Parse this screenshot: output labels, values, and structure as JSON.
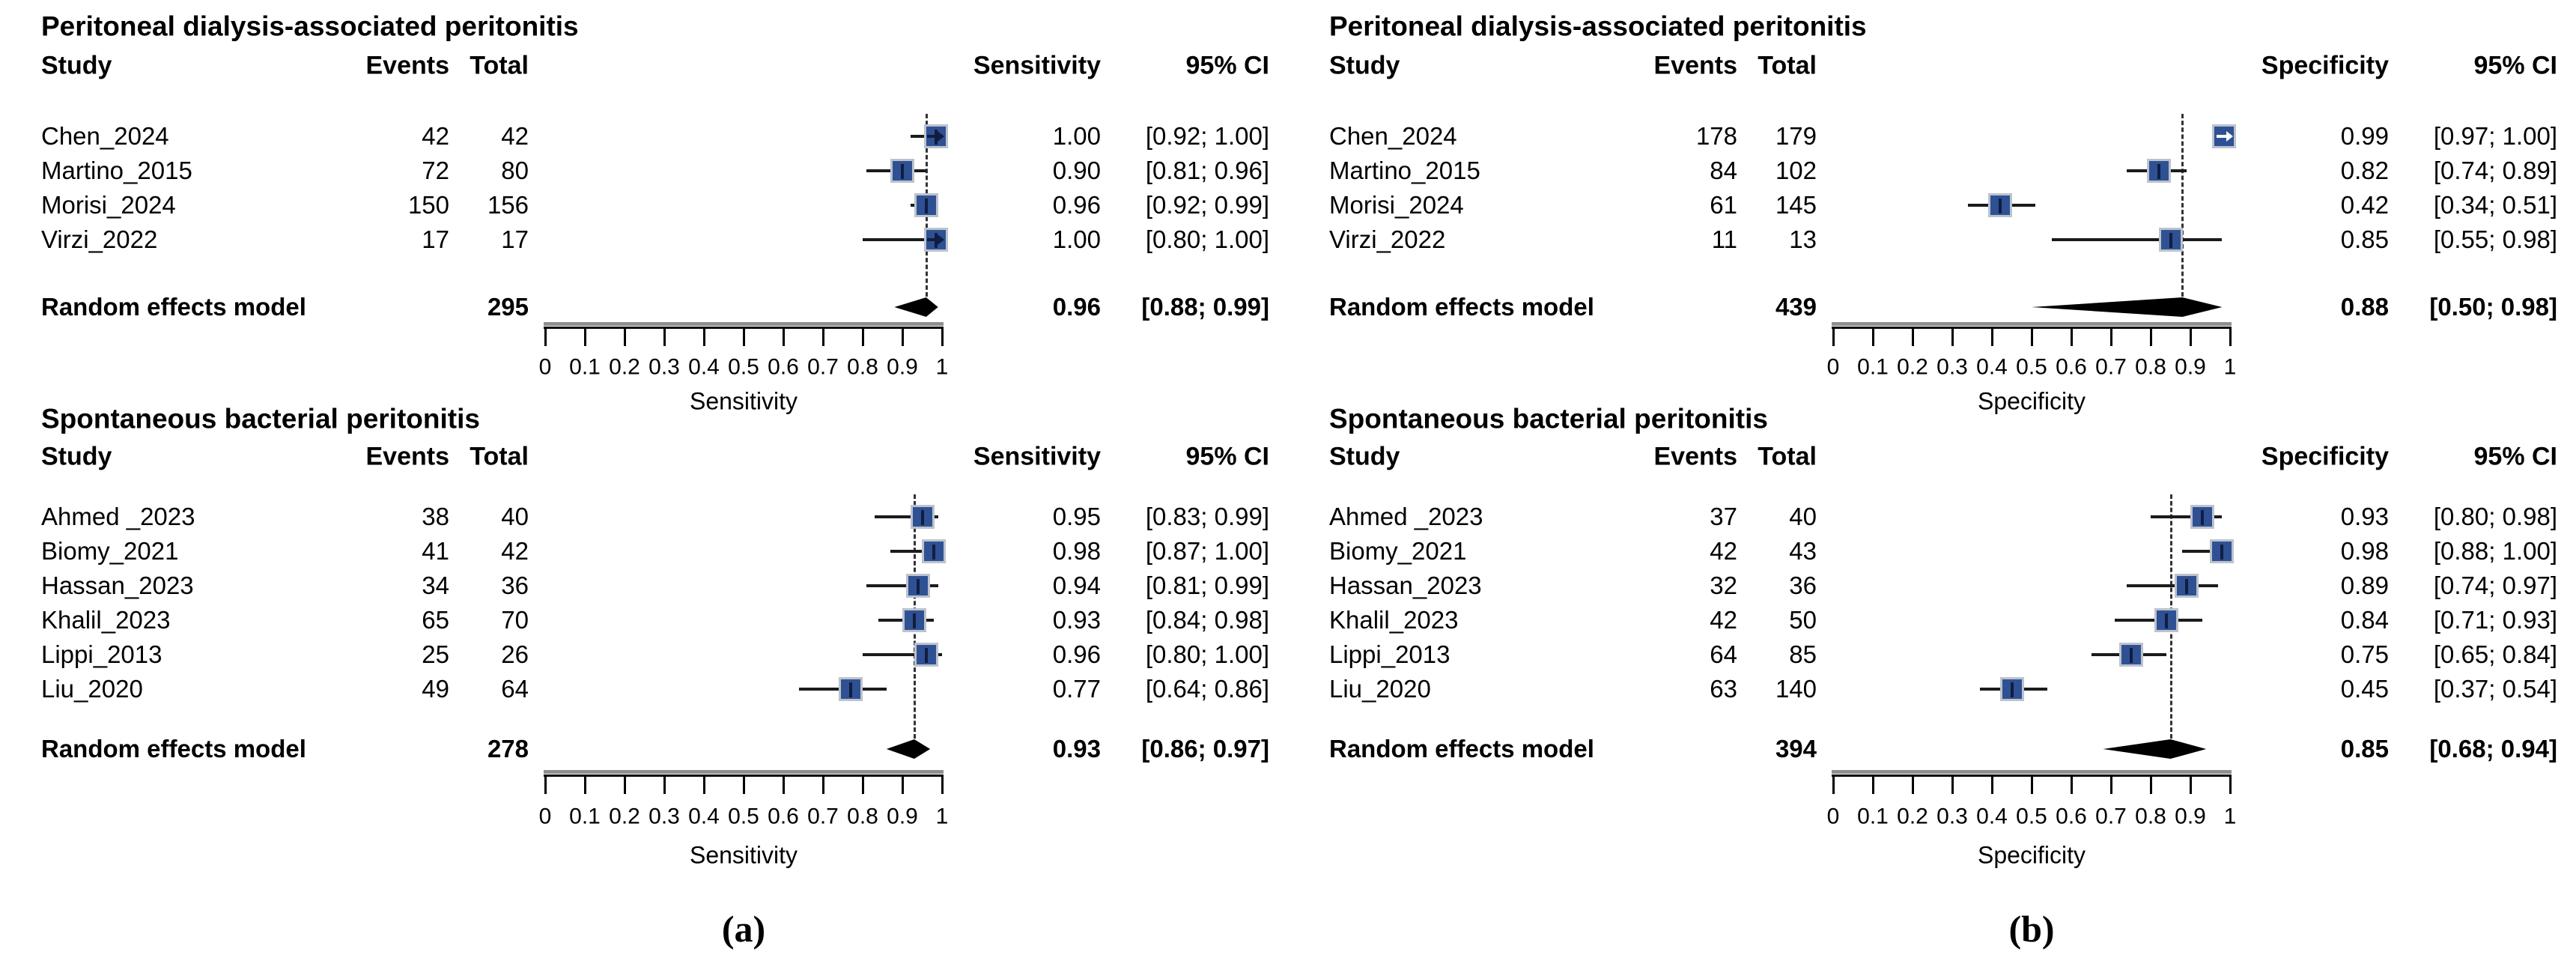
{
  "figure": {
    "captions": {
      "a": "(a)",
      "b": "(b)"
    }
  },
  "colors": {
    "background": "#ffffff",
    "text": "#000000",
    "square_fill": "#2f5193",
    "square_border": "#bcc3cd",
    "ci_line": "#1b1b1b",
    "marker_tick": "#101d42",
    "white_arrow": "#ffffff",
    "diamond": "#000000",
    "dashed_line": "#333333",
    "axis_line": "#000000",
    "axis_shadow": "#8f8f8f"
  },
  "chart_data": [
    {
      "type": "forest",
      "figure_panel": "a",
      "slot": "top",
      "title": "Peritoneal dialysis-associated peritonitis",
      "measure_label": "Sensitivity",
      "columns": {
        "study": "Study",
        "events": "Events",
        "total": "Total",
        "ci": "95% CI"
      },
      "axis": {
        "label": "Sensitivity",
        "min": 0,
        "max": 1,
        "ticks": [
          "0",
          "0.1",
          "0.2",
          "0.3",
          "0.4",
          "0.5",
          "0.6",
          "0.7",
          "0.8",
          "0.9",
          "1"
        ]
      },
      "studies": [
        {
          "study": "Chen_2024",
          "events": "42",
          "total": "42",
          "estimate": 1.0,
          "ci_lower": 0.92,
          "ci_upper": 1.0,
          "estimate_text": "1.00",
          "ci_text": "[0.92; 1.00]",
          "arrow": "dark"
        },
        {
          "study": "Martino_2015",
          "events": "72",
          "total": "80",
          "estimate": 0.9,
          "ci_lower": 0.81,
          "ci_upper": 0.96,
          "estimate_text": "0.90",
          "ci_text": "[0.81; 0.96]"
        },
        {
          "study": "Morisi_2024",
          "events": "150",
          "total": "156",
          "estimate": 0.96,
          "ci_lower": 0.92,
          "ci_upper": 0.99,
          "estimate_text": "0.96",
          "ci_text": "[0.92; 0.99]"
        },
        {
          "study": "Virzi_2022",
          "events": "17",
          "total": "17",
          "estimate": 1.0,
          "ci_lower": 0.8,
          "ci_upper": 1.0,
          "estimate_text": "1.00",
          "ci_text": "[0.80; 1.00]",
          "arrow": "dark"
        }
      ],
      "pooled": {
        "label": "Random effects model",
        "total": "295",
        "estimate": 0.96,
        "ci_lower": 0.88,
        "ci_upper": 0.99,
        "estimate_text": "0.96",
        "ci_text": "[0.88; 0.99]"
      }
    },
    {
      "type": "forest",
      "figure_panel": "a",
      "slot": "bottom",
      "title": "Spontaneous bacterial peritonitis",
      "measure_label": "Sensitivity",
      "columns": {
        "study": "Study",
        "events": "Events",
        "total": "Total",
        "ci": "95% CI"
      },
      "axis": {
        "label": "Sensitivity",
        "min": 0,
        "max": 1,
        "ticks": [
          "0",
          "0.1",
          "0.2",
          "0.3",
          "0.4",
          "0.5",
          "0.6",
          "0.7",
          "0.8",
          "0.9",
          "1"
        ]
      },
      "studies": [
        {
          "study": "Ahmed _2023",
          "events": "38",
          "total": "40",
          "estimate": 0.95,
          "ci_lower": 0.83,
          "ci_upper": 0.99,
          "estimate_text": "0.95",
          "ci_text": "[0.83; 0.99]"
        },
        {
          "study": "Biomy_2021",
          "events": "41",
          "total": "42",
          "estimate": 0.98,
          "ci_lower": 0.87,
          "ci_upper": 1.0,
          "estimate_text": "0.98",
          "ci_text": "[0.87; 1.00]"
        },
        {
          "study": "Hassan_2023",
          "events": "34",
          "total": "36",
          "estimate": 0.94,
          "ci_lower": 0.81,
          "ci_upper": 0.99,
          "estimate_text": "0.94",
          "ci_text": "[0.81; 0.99]"
        },
        {
          "study": "Khalil_2023",
          "events": "65",
          "total": "70",
          "estimate": 0.93,
          "ci_lower": 0.84,
          "ci_upper": 0.98,
          "estimate_text": "0.93",
          "ci_text": "[0.84; 0.98]"
        },
        {
          "study": "Lippi_2013",
          "events": "25",
          "total": "26",
          "estimate": 0.96,
          "ci_lower": 0.8,
          "ci_upper": 1.0,
          "estimate_text": "0.96",
          "ci_text": "[0.80; 1.00]"
        },
        {
          "study": "Liu_2020",
          "events": "49",
          "total": "64",
          "estimate": 0.77,
          "ci_lower": 0.64,
          "ci_upper": 0.86,
          "estimate_text": "0.77",
          "ci_text": "[0.64; 0.86]"
        }
      ],
      "pooled": {
        "label": "Random effects model",
        "total": "278",
        "estimate": 0.93,
        "ci_lower": 0.86,
        "ci_upper": 0.97,
        "estimate_text": "0.93",
        "ci_text": "[0.86; 0.97]"
      }
    },
    {
      "type": "forest",
      "figure_panel": "b",
      "slot": "top",
      "title": "Peritoneal dialysis-associated peritonitis",
      "measure_label": "Specificity",
      "columns": {
        "study": "Study",
        "events": "Events",
        "total": "Total",
        "ci": "95% CI"
      },
      "axis": {
        "label": "Specificity",
        "min": 0,
        "max": 1,
        "ticks": [
          "0",
          "0.1",
          "0.2",
          "0.3",
          "0.4",
          "0.5",
          "0.6",
          "0.7",
          "0.8",
          "0.9",
          "1"
        ]
      },
      "studies": [
        {
          "study": "Chen_2024",
          "events": "178",
          "total": "179",
          "estimate": 0.99,
          "ci_lower": 0.97,
          "ci_upper": 1.0,
          "estimate_text": "0.99",
          "ci_text": "[0.97; 1.00]",
          "arrow": "white"
        },
        {
          "study": "Martino_2015",
          "events": "84",
          "total": "102",
          "estimate": 0.82,
          "ci_lower": 0.74,
          "ci_upper": 0.89,
          "estimate_text": "0.82",
          "ci_text": "[0.74; 0.89]"
        },
        {
          "study": "Morisi_2024",
          "events": "61",
          "total": "145",
          "estimate": 0.42,
          "ci_lower": 0.34,
          "ci_upper": 0.51,
          "estimate_text": "0.42",
          "ci_text": "[0.34; 0.51]"
        },
        {
          "study": "Virzi_2022",
          "events": "11",
          "total": "13",
          "estimate": 0.85,
          "ci_lower": 0.55,
          "ci_upper": 0.98,
          "estimate_text": "0.85",
          "ci_text": "[0.55; 0.98]"
        }
      ],
      "pooled": {
        "label": "Random effects model",
        "total": "439",
        "estimate": 0.88,
        "ci_lower": 0.5,
        "ci_upper": 0.98,
        "estimate_text": "0.88",
        "ci_text": "[0.50; 0.98]"
      }
    },
    {
      "type": "forest",
      "figure_panel": "b",
      "slot": "bottom",
      "title": "Spontaneous bacterial peritonitis",
      "measure_label": "Specificity",
      "columns": {
        "study": "Study",
        "events": "Events",
        "total": "Total",
        "ci": "95% CI"
      },
      "axis": {
        "label": "Specificity",
        "min": 0,
        "max": 1,
        "ticks": [
          "0",
          "0.1",
          "0.2",
          "0.3",
          "0.4",
          "0.5",
          "0.6",
          "0.7",
          "0.8",
          "0.9",
          "1"
        ]
      },
      "studies": [
        {
          "study": "Ahmed _2023",
          "events": "37",
          "total": "40",
          "estimate": 0.93,
          "ci_lower": 0.8,
          "ci_upper": 0.98,
          "estimate_text": "0.93",
          "ci_text": "[0.80; 0.98]"
        },
        {
          "study": "Biomy_2021",
          "events": "42",
          "total": "43",
          "estimate": 0.98,
          "ci_lower": 0.88,
          "ci_upper": 1.0,
          "estimate_text": "0.98",
          "ci_text": "[0.88; 1.00]"
        },
        {
          "study": "Hassan_2023",
          "events": "32",
          "total": "36",
          "estimate": 0.89,
          "ci_lower": 0.74,
          "ci_upper": 0.97,
          "estimate_text": "0.89",
          "ci_text": "[0.74; 0.97]"
        },
        {
          "study": "Khalil_2023",
          "events": "42",
          "total": "50",
          "estimate": 0.84,
          "ci_lower": 0.71,
          "ci_upper": 0.93,
          "estimate_text": "0.84",
          "ci_text": "[0.71; 0.93]"
        },
        {
          "study": "Lippi_2013",
          "events": "64",
          "total": "85",
          "estimate": 0.75,
          "ci_lower": 0.65,
          "ci_upper": 0.84,
          "estimate_text": "0.75",
          "ci_text": "[0.65; 0.84]"
        },
        {
          "study": "Liu_2020",
          "events": "63",
          "total": "140",
          "estimate": 0.45,
          "ci_lower": 0.37,
          "ci_upper": 0.54,
          "estimate_text": "0.45",
          "ci_text": "[0.37; 0.54]"
        }
      ],
      "pooled": {
        "label": "Random effects model",
        "total": "394",
        "estimate": 0.85,
        "ci_lower": 0.68,
        "ci_upper": 0.94,
        "estimate_text": "0.85",
        "ci_text": "[0.68; 0.94]"
      }
    }
  ]
}
